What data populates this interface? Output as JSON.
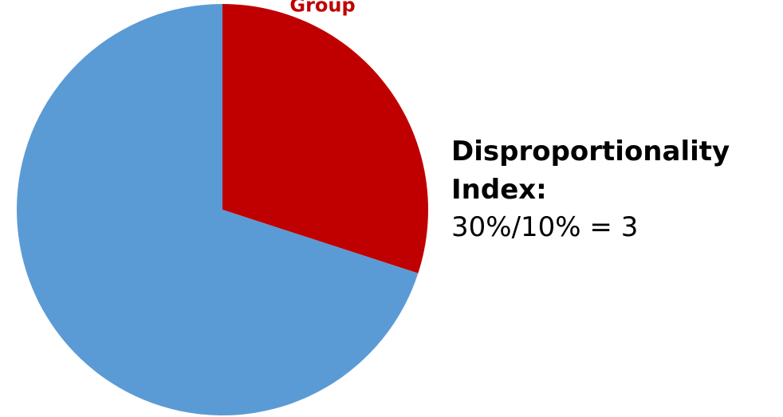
{
  "chart_data": {
    "type": "pie",
    "start": "top, clockwise",
    "slices": [
      {
        "label": "Group A",
        "value": 30,
        "color": "#C00000"
      },
      {
        "label": "",
        "value": 70,
        "color": "#5B9BD5"
      }
    ]
  },
  "annotation": {
    "title": "Disproportionality Index:",
    "formula": "30%/10% = 3"
  }
}
